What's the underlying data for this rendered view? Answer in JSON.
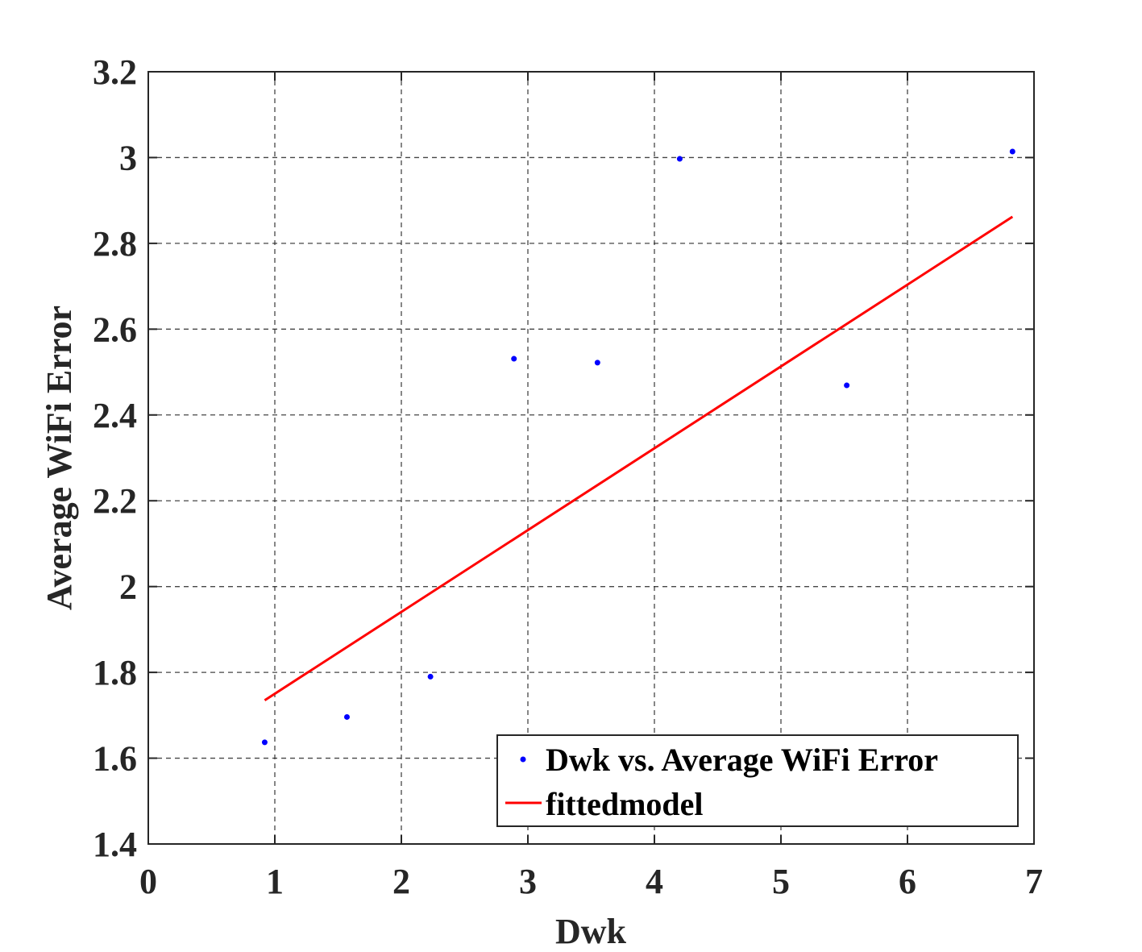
{
  "chart_data": {
    "type": "scatter",
    "xlabel": "Dwk",
    "ylabel": "Average WiFi Error",
    "xlim": [
      0,
      7
    ],
    "ylim": [
      1.4,
      3.2
    ],
    "xticks": [
      0,
      1,
      2,
      3,
      4,
      5,
      6,
      7
    ],
    "yticks": [
      1.4,
      1.6,
      1.8,
      2,
      2.2,
      2.4,
      2.6,
      2.8,
      3,
      3.2
    ],
    "xtick_labels": [
      "0",
      "1",
      "2",
      "3",
      "4",
      "5",
      "6",
      "7"
    ],
    "ytick_labels": [
      "1.4",
      "1.6",
      "1.8",
      "2",
      "2.2",
      "2.4",
      "2.6",
      "2.8",
      "3",
      "3.2"
    ],
    "grid": true,
    "legend_position": "bottom-right",
    "series": [
      {
        "name": "Dwk vs. Average WiFi Error",
        "kind": "scatter",
        "color": "#0000ff",
        "x": [
          0.92,
          1.57,
          2.23,
          2.89,
          3.55,
          4.2,
          5.52,
          6.83
        ],
        "y": [
          1.637,
          1.696,
          1.79,
          2.531,
          2.522,
          2.997,
          2.469,
          3.014
        ]
      },
      {
        "name": "fittedmodel",
        "kind": "line",
        "color": "#ff0000",
        "x": [
          0.92,
          6.83
        ],
        "y": [
          1.735,
          2.862
        ]
      }
    ]
  }
}
